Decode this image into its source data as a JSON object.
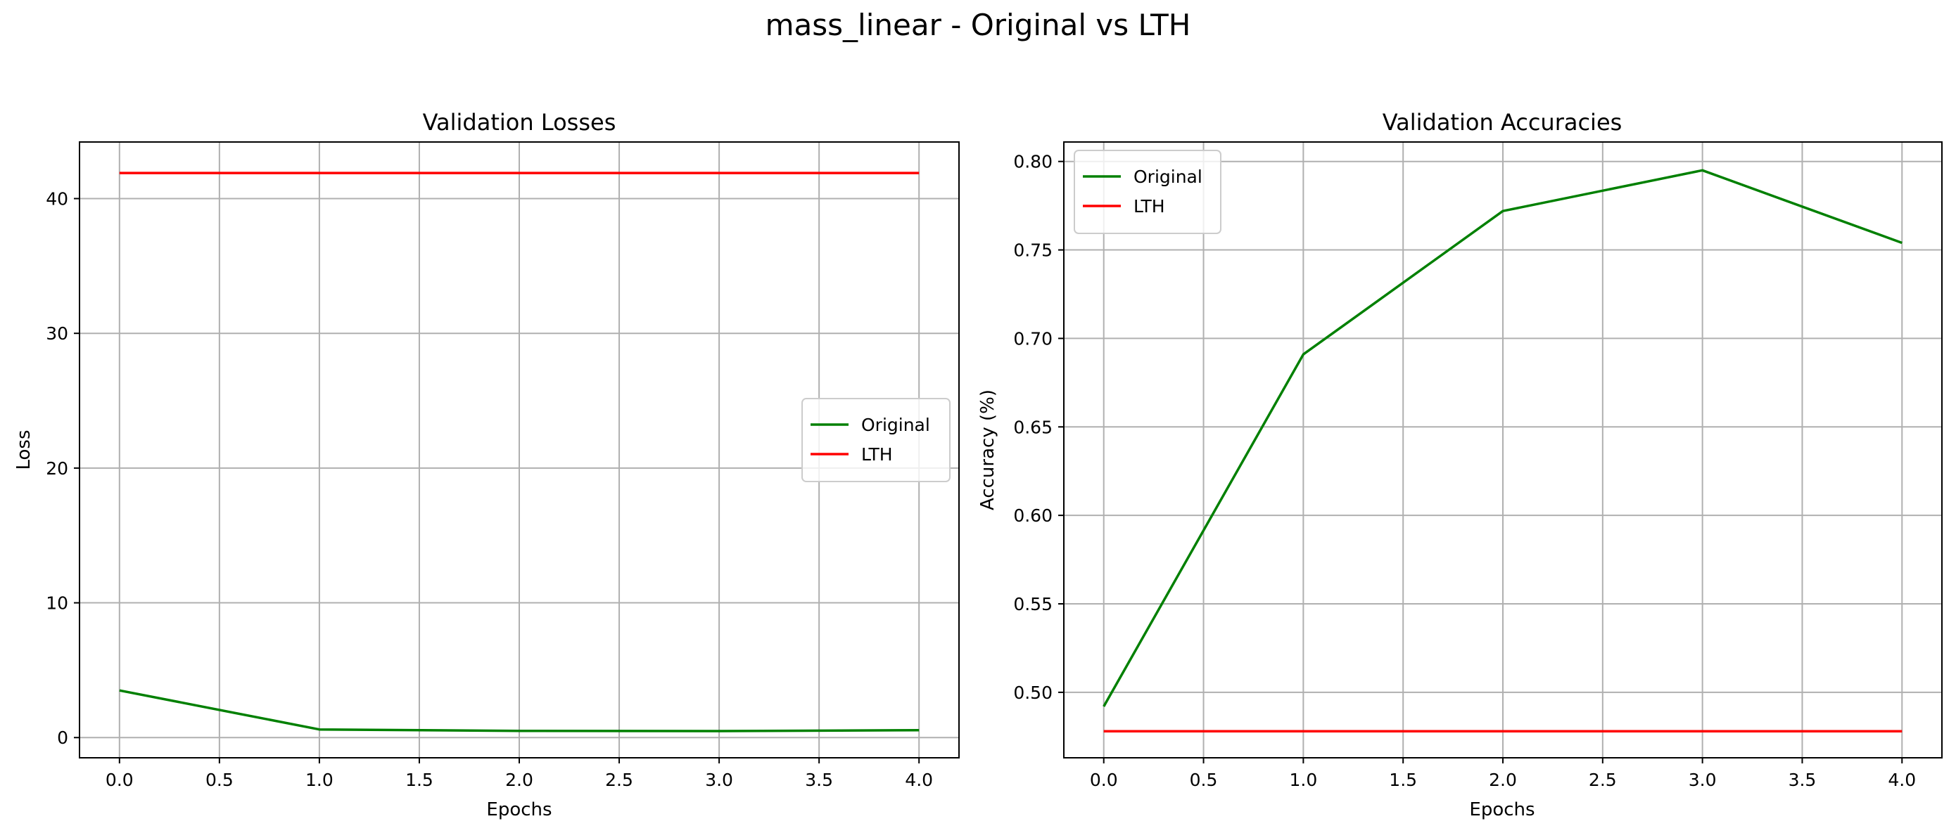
{
  "figure_title": "mass_linear - Original vs LTH",
  "chart_data": [
    {
      "type": "line",
      "title": "Validation Losses",
      "xlabel": "Epochs",
      "ylabel": "Loss",
      "x": [
        0,
        1,
        2,
        3,
        4
      ],
      "xlim": [
        -0.2,
        4.2
      ],
      "ylim": [
        -1.5,
        44.2
      ],
      "xticks": [
        "0.0",
        "0.5",
        "1.0",
        "1.5",
        "2.0",
        "2.5",
        "3.0",
        "3.5",
        "4.0"
      ],
      "yticks": [
        "0",
        "10",
        "20",
        "30",
        "40"
      ],
      "grid": true,
      "legend_position": "center-right",
      "series": [
        {
          "name": "Original",
          "color": "#008000",
          "values": [
            3.5,
            0.6,
            0.5,
            0.48,
            0.55
          ]
        },
        {
          "name": "LTH",
          "color": "#ff0000",
          "values": [
            41.9,
            41.9,
            41.9,
            41.9,
            41.9
          ]
        }
      ]
    },
    {
      "type": "line",
      "title": "Validation Accuracies",
      "xlabel": "Epochs",
      "ylabel": "Accuracy (%)",
      "x": [
        0,
        1,
        2,
        3,
        4
      ],
      "xlim": [
        -0.2,
        4.2
      ],
      "ylim": [
        0.463,
        0.811
      ],
      "xticks": [
        "0.0",
        "0.5",
        "1.0",
        "1.5",
        "2.0",
        "2.5",
        "3.0",
        "3.5",
        "4.0"
      ],
      "yticks": [
        "0.50",
        "0.55",
        "0.60",
        "0.65",
        "0.70",
        "0.75",
        "0.80"
      ],
      "grid": true,
      "legend_position": "top-left",
      "series": [
        {
          "name": "Original",
          "color": "#008000",
          "values": [
            0.492,
            0.691,
            0.772,
            0.795,
            0.754
          ]
        },
        {
          "name": "LTH",
          "color": "#ff0000",
          "values": [
            0.478,
            0.478,
            0.478,
            0.478,
            0.478
          ]
        }
      ]
    }
  ]
}
